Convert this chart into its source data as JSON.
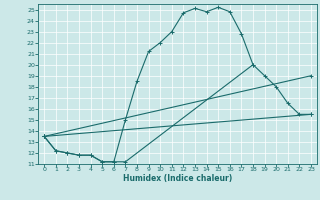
{
  "xlabel": "Humidex (Indice chaleur)",
  "xlim": [
    -0.5,
    23.5
  ],
  "ylim": [
    11,
    25.5
  ],
  "xticks": [
    0,
    1,
    2,
    3,
    4,
    5,
    6,
    7,
    8,
    9,
    10,
    11,
    12,
    13,
    14,
    15,
    16,
    17,
    18,
    19,
    20,
    21,
    22,
    23
  ],
  "yticks": [
    11,
    12,
    13,
    14,
    15,
    16,
    17,
    18,
    19,
    20,
    21,
    22,
    23,
    24,
    25
  ],
  "background_color": "#cce8e8",
  "line_color": "#1a6b6b",
  "grid_color": "#ffffff",
  "curve1_x": [
    0,
    1,
    2,
    3,
    4,
    5,
    6,
    7,
    8,
    9,
    10,
    11,
    12,
    13,
    14,
    15,
    16,
    17,
    18
  ],
  "curve1_y": [
    13.5,
    12.2,
    12.0,
    11.8,
    11.8,
    11.2,
    11.2,
    15.0,
    18.5,
    21.2,
    22.0,
    23.0,
    24.7,
    25.1,
    24.8,
    25.2,
    24.8,
    22.8,
    20.0
  ],
  "curve2_x": [
    0,
    1,
    2,
    3,
    4,
    5,
    6,
    7,
    18,
    19,
    20,
    21,
    22,
    23
  ],
  "curve2_y": [
    13.5,
    12.2,
    12.0,
    11.8,
    11.8,
    11.2,
    11.2,
    11.2,
    20.0,
    19.0,
    18.0,
    16.5,
    15.5,
    15.5
  ],
  "curve3_x": [
    0,
    23
  ],
  "curve3_y": [
    13.5,
    19.0
  ],
  "curve4_x": [
    0,
    23
  ],
  "curve4_y": [
    13.5,
    15.5
  ]
}
